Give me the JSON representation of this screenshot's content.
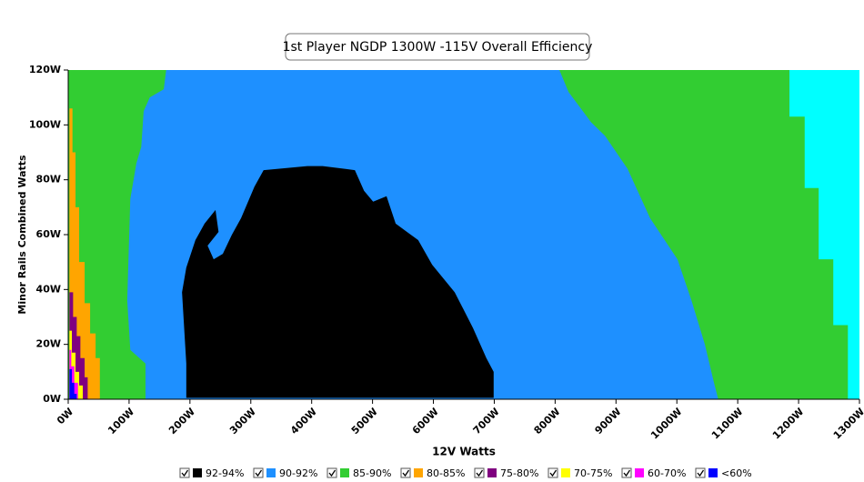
{
  "chart_data": {
    "type": "region",
    "title": "1st Player NGDP 1300W -115V Overall Efficiency",
    "x_label": "12V Watts",
    "y_label": "Minor Rails Combined Watts",
    "xlim": [
      0,
      1300
    ],
    "ylim": [
      0,
      120
    ],
    "xticks": [
      {
        "value": 0,
        "label": "0W"
      },
      {
        "value": 100,
        "label": "100W"
      },
      {
        "value": 200,
        "label": "200W"
      },
      {
        "value": 300,
        "label": "300W"
      },
      {
        "value": 400,
        "label": "400W"
      },
      {
        "value": 500,
        "label": "500W"
      },
      {
        "value": 600,
        "label": "600W"
      },
      {
        "value": 700,
        "label": "700W"
      },
      {
        "value": 800,
        "label": "800W"
      },
      {
        "value": 900,
        "label": "900W"
      },
      {
        "value": 1000,
        "label": "1000W"
      },
      {
        "value": 1100,
        "label": "1100W"
      },
      {
        "value": 1200,
        "label": "1200W"
      },
      {
        "value": 1300,
        "label": "1300W"
      }
    ],
    "yticks": [
      {
        "value": 0,
        "label": "0W"
      },
      {
        "value": 20,
        "label": "20W"
      },
      {
        "value": 40,
        "label": "40W"
      },
      {
        "value": 60,
        "label": "60W"
      },
      {
        "value": 80,
        "label": "80W"
      },
      {
        "value": 100,
        "label": "100W"
      },
      {
        "value": 120,
        "label": "120W"
      }
    ],
    "series": [
      {
        "name": "92-94%",
        "color": "#000000",
        "x": [
          321,
          393,
          418,
          471,
          486,
          501,
          523,
          538,
          575,
          598,
          635,
          665,
          687,
          699,
          699,
          194,
          194,
          187,
          194,
          209,
          224,
          242,
          247,
          229,
          239,
          254,
          269,
          284,
          306
        ],
        "y": [
          83.5,
          85,
          85,
          83.5,
          76,
          72,
          74,
          64,
          58,
          49,
          39,
          26,
          15,
          10,
          0.5,
          0.5,
          13,
          39,
          48,
          58,
          64,
          69,
          61,
          56,
          51,
          53,
          60,
          66,
          77.5
        ]
      },
      {
        "name": "90-92%",
        "color": "#1e90ff",
        "x": [
          161,
          807,
          822,
          859,
          882,
          919,
          956,
          1001,
          1024,
          1046,
          1061,
          1068,
          127,
          127,
          102,
          97,
          102,
          112,
          120,
          124,
          134,
          157
        ],
        "y": [
          120,
          120,
          112,
          101,
          96,
          84,
          66,
          51,
          36,
          20,
          6,
          0,
          0,
          13,
          18,
          36,
          73,
          86,
          92,
          105,
          110,
          113
        ]
      },
      {
        "name": "85-90%",
        "color": "#32cd32",
        "x": [
          0,
          1300,
          1300,
          0
        ],
        "y": [
          0,
          0,
          120,
          120
        ]
      },
      {
        "name": "80-85%",
        "color": "#ffa500",
        "x": [
          2,
          52,
          52,
          45,
          45,
          36,
          36,
          27,
          27,
          18,
          18,
          12,
          12,
          7,
          7,
          2
        ],
        "y": [
          0,
          0,
          15,
          15,
          24,
          24,
          35,
          35,
          50,
          50,
          70,
          70,
          90,
          90,
          106,
          106
        ]
      },
      {
        "name": "75-80%",
        "color": "#800080",
        "x": [
          2,
          8,
          8,
          14,
          14,
          20,
          20,
          27,
          27,
          32,
          32,
          2
        ],
        "y": [
          39,
          39,
          30,
          30,
          23,
          23,
          15,
          15,
          8,
          8,
          0,
          0
        ]
      },
      {
        "name": "70-75%",
        "color": "#ffff00",
        "x": [
          2,
          6,
          6,
          12,
          12,
          18,
          18,
          24,
          24,
          2
        ],
        "y": [
          25,
          25,
          17,
          17,
          10,
          10,
          5,
          5,
          0,
          0
        ]
      },
      {
        "name": "60-70%",
        "color": "#ff00ff",
        "x": [
          2,
          5,
          5,
          10,
          10,
          16,
          16,
          2
        ],
        "y": [
          18,
          18,
          12,
          12,
          6,
          6,
          0,
          0
        ]
      },
      {
        "name": "<60%",
        "color": "#0000ff",
        "x": [
          2,
          6,
          6,
          10,
          10,
          14,
          14,
          2
        ],
        "y": [
          11,
          11,
          6,
          6,
          2,
          2,
          0,
          0
        ]
      },
      {
        "color": "#00ffff",
        "x": [
          1185,
          1185,
          1210,
          1210,
          1233,
          1233,
          1257,
          1257,
          1281,
          1281,
          1300,
          1300
        ],
        "y": [
          120,
          103,
          103,
          77,
          77,
          51,
          51,
          27,
          27,
          0,
          0,
          120
        ]
      }
    ]
  }
}
